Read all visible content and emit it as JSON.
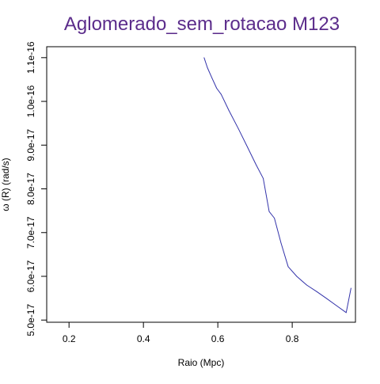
{
  "chart_data": {
    "type": "line",
    "title": "Aglomerado_sem_rotacao M123",
    "xlabel": "Raio (Mpc)",
    "ylabel": "ω (R) (rad/s)",
    "x_ticks": [
      {
        "value": 0.2,
        "label": "0.2"
      },
      {
        "value": 0.4,
        "label": "0.4"
      },
      {
        "value": 0.6,
        "label": "0.6"
      },
      {
        "value": 0.8,
        "label": "0.8"
      }
    ],
    "y_ticks": [
      {
        "value": 5e-17,
        "label": "5.0e-17"
      },
      {
        "value": 6e-17,
        "label": "6.0e-17"
      },
      {
        "value": 7e-17,
        "label": "7.0e-17"
      },
      {
        "value": 8e-17,
        "label": "8.0e-17"
      },
      {
        "value": 9e-17,
        "label": "9.0e-17"
      },
      {
        "value": 1e-16,
        "label": "1.0e-16"
      },
      {
        "value": 1.1e-16,
        "label": "1.1e-16"
      }
    ],
    "xlim": [
      0.14,
      0.97
    ],
    "ylim": [
      4.95e-17,
      1.125e-16
    ],
    "grid": false,
    "series": [
      {
        "color": "#3333aa",
        "x": [
          0.563,
          0.572,
          0.584,
          0.597,
          0.609,
          0.63,
          0.655,
          0.68,
          0.703,
          0.722,
          0.738,
          0.752,
          0.77,
          0.789,
          0.812,
          0.839,
          0.866,
          0.893,
          0.919,
          0.945,
          0.958
        ],
        "y": [
          1.1e-16,
          1.077e-16,
          1.054e-16,
          1.03e-16,
          1.016e-16,
          9.79e-17,
          9.38e-17,
          8.95e-17,
          8.55e-17,
          8.24e-17,
          7.48e-17,
          7.33e-17,
          6.76e-17,
          6.22e-17,
          6e-17,
          5.8e-17,
          5.65e-17,
          5.49e-17,
          5.33e-17,
          5.17e-17,
          5.73e-17
        ]
      }
    ]
  },
  "colors": {
    "title": "#5b2c8b",
    "axis": "#000000",
    "line": "#3333aa"
  }
}
